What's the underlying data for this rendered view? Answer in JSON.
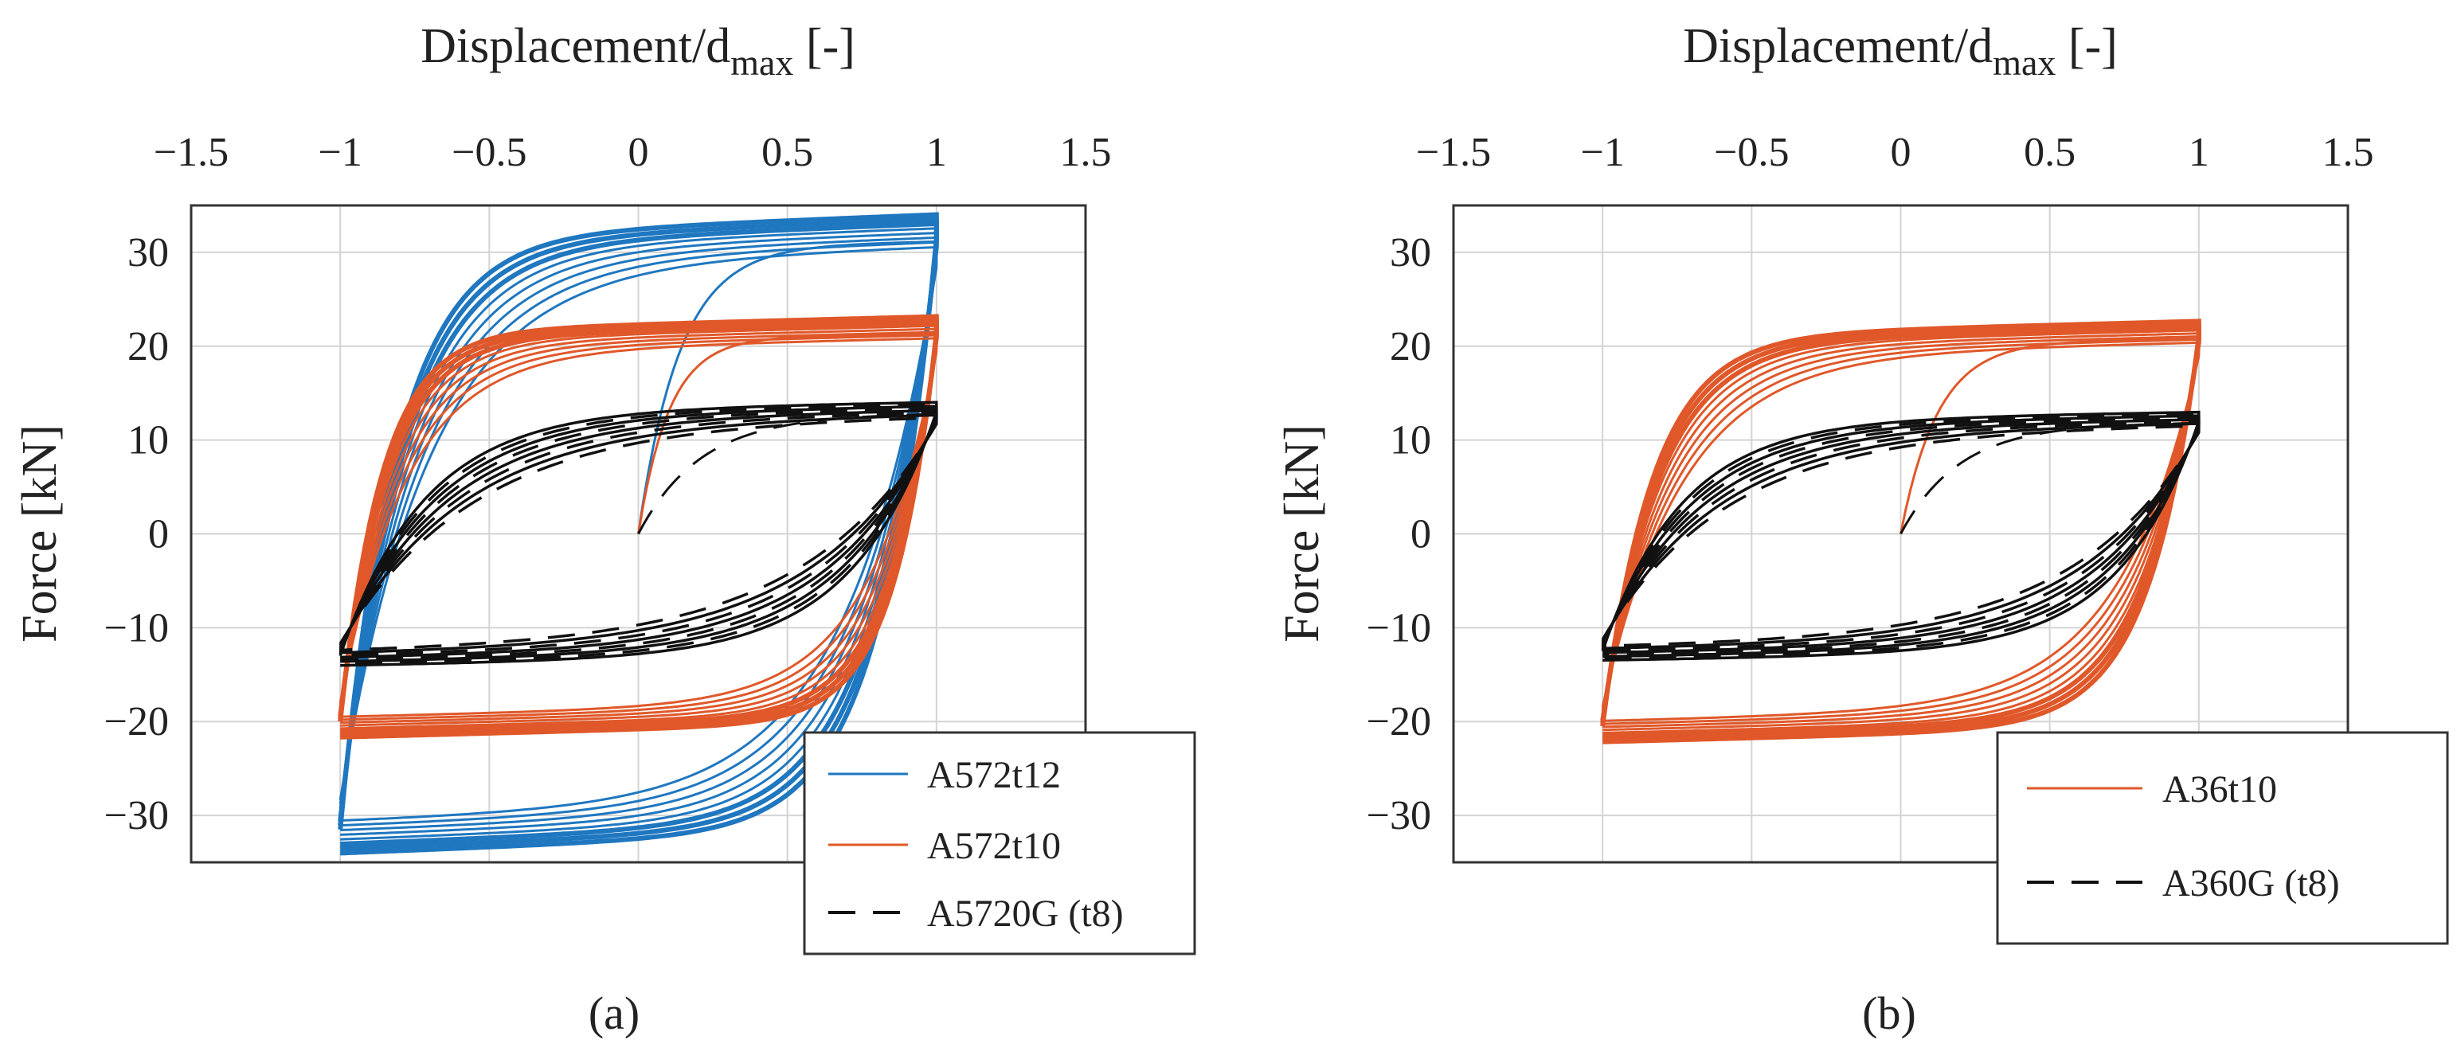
{
  "figure": {
    "panel_a_label": "(a)",
    "panel_b_label": "(b)"
  },
  "colors": {
    "blue": "#1f77c0",
    "orange": "#e0582a",
    "black": "#111111",
    "grid": "#d4d4d4",
    "axis": "#333333"
  },
  "chart_data": [
    {
      "type": "line",
      "panel": "a",
      "xlabel_main": "Displacement/d",
      "xlabel_sub": "max",
      "xlabel_suffix": " [-]",
      "ylabel": "Force [kN]",
      "xlim": [
        -1.5,
        1.5
      ],
      "ylim": [
        -35,
        35
      ],
      "xticks": [
        -1.5,
        -1,
        -0.5,
        0,
        0.5,
        1,
        1.5
      ],
      "xtick_labels": [
        "−1.5",
        "−1",
        "−0.5",
        "0",
        "0.5",
        "1",
        "1.5"
      ],
      "yticks": [
        30,
        20,
        10,
        0,
        -10,
        -20,
        -30
      ],
      "ytick_labels": [
        "30",
        "20",
        "10",
        "0",
        "−10",
        "−20",
        "−30"
      ],
      "grid": true,
      "legend_position": "bottom-right",
      "series": [
        {
          "name": "A572t12",
          "style": "solid",
          "color_key": "blue",
          "Fmax": 31.5,
          "Fmin": -31.5,
          "sharpness": 4.5,
          "knee": 0.85,
          "cycles": 8
        },
        {
          "name": "A572t10",
          "style": "solid",
          "color_key": "orange",
          "Fmax": 21.5,
          "Fmin": -20.0,
          "sharpness": 6.0,
          "knee": 0.88,
          "cycles": 8
        },
        {
          "name": "A5720G (t8)",
          "style": "dashed",
          "color_key": "black",
          "Fmax": 13.0,
          "Fmin": -13.0,
          "sharpness": 3.0,
          "knee": 0.85,
          "cycles": 8
        }
      ]
    },
    {
      "type": "line",
      "panel": "b",
      "xlabel_main": "Displacement/d",
      "xlabel_sub": "max",
      "xlabel_suffix": " [-]",
      "ylabel": "Force [kN]",
      "xlim": [
        -1.5,
        1.5
      ],
      "ylim": [
        -35,
        35
      ],
      "xticks": [
        -1.5,
        -1,
        -0.5,
        0,
        0.5,
        1,
        1.5
      ],
      "xtick_labels": [
        "−1.5",
        "−1",
        "−0.5",
        "0",
        "0.5",
        "1",
        "1.5"
      ],
      "yticks": [
        30,
        20,
        10,
        0,
        -10,
        -20,
        -30
      ],
      "ytick_labels": [
        "30",
        "20",
        "10",
        "0",
        "−10",
        "−20",
        "−30"
      ],
      "grid": true,
      "legend_position": "bottom-right",
      "series": [
        {
          "name": "A36t10",
          "style": "solid",
          "color_key": "orange",
          "Fmax": 21.0,
          "Fmin": -20.5,
          "sharpness": 5.0,
          "knee": 0.85,
          "cycles": 8
        },
        {
          "name": "A360G (t8)",
          "style": "dashed",
          "color_key": "black",
          "Fmax": 12.0,
          "Fmin": -12.5,
          "sharpness": 3.2,
          "knee": 0.85,
          "cycles": 8
        }
      ]
    }
  ]
}
